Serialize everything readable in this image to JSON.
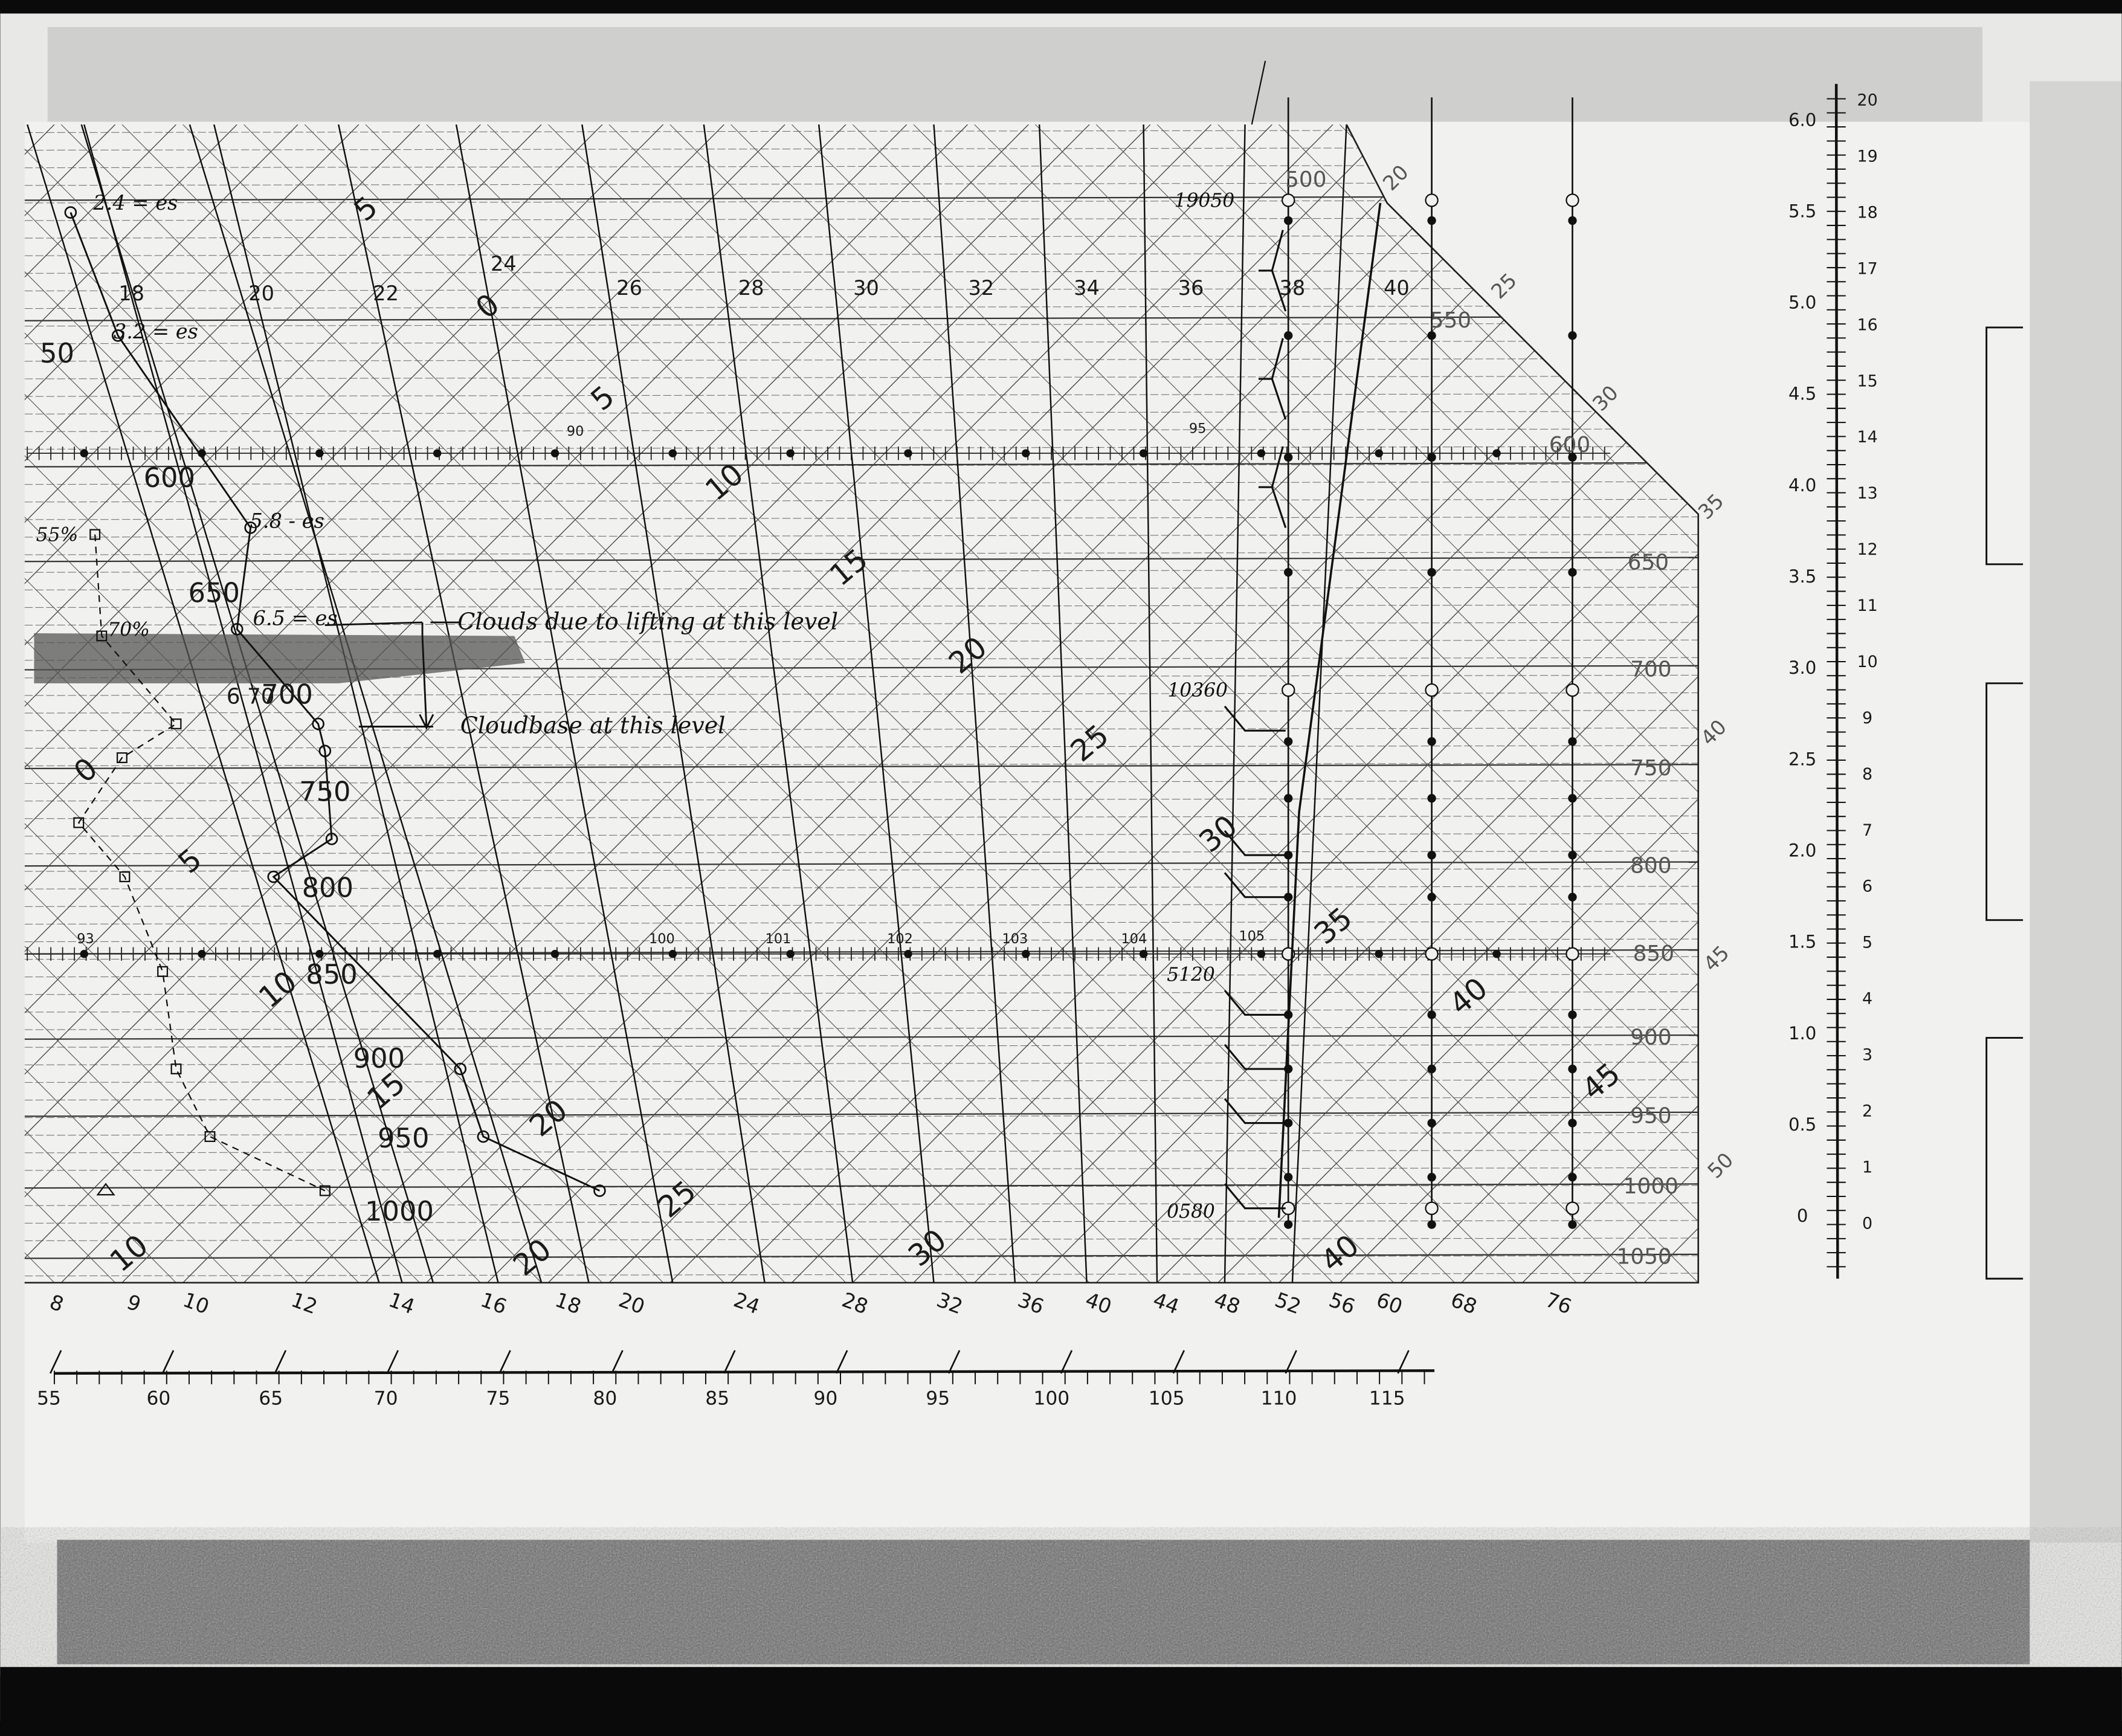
{
  "isobar_labels_right": [
    "500",
    "550",
    "600",
    "650",
    "700",
    "750",
    "800",
    "850",
    "900",
    "950",
    "1000",
    "1050"
  ],
  "isobar_labels_left": [
    "50",
    "600",
    "650",
    "700",
    "750",
    "800",
    "850",
    "900",
    "950",
    "1000"
  ],
  "temperature_top_labels": [
    "18",
    "20",
    "22",
    "24",
    "26",
    "28",
    "30",
    "32",
    "34",
    "36",
    "38",
    "40"
  ],
  "temperature_bottom_labels": [
    "8",
    "9",
    "10",
    "12",
    "14",
    "16",
    "18",
    "20",
    "24",
    "28",
    "32",
    "36",
    "40",
    "44",
    "48",
    "52",
    "56",
    "60",
    "68",
    "76"
  ],
  "bottom_scale_labels": [
    "55",
    "60",
    "65",
    "70",
    "75",
    "80",
    "85",
    "90",
    "95",
    "100",
    "105",
    "110",
    "115"
  ],
  "right_scale_left_labels": [
    "6.0",
    "5.5",
    "5.0",
    "4.5",
    "4.0",
    "3.5",
    "3.0",
    "2.5",
    "2.0",
    "1.5",
    "1.0",
    "0.5",
    "0"
  ],
  "right_scale_right_labels": [
    "20",
    "19",
    "18",
    "17",
    "16",
    "15",
    "14",
    "13",
    "12",
    "11",
    "10",
    "9",
    "8",
    "7",
    "6",
    "5",
    "4",
    "3",
    "2",
    "1",
    "0"
  ],
  "diagonal_labels": [
    "0",
    "5",
    "10",
    "15",
    "20",
    "25",
    "30",
    "35",
    "40",
    "45",
    "0",
    "5",
    "10",
    "15",
    "20",
    "25",
    "30",
    "10",
    "20",
    "40",
    "5"
  ],
  "edge_labels": [
    "20",
    "25",
    "30",
    "35",
    "40",
    "45",
    "50"
  ],
  "marker_labels": [
    "90",
    "95",
    "93",
    "100",
    "101",
    "102",
    "103",
    "104",
    "105"
  ],
  "height_labels": [
    "19050",
    "10360",
    "5120",
    "0580"
  ],
  "vapor_pressure_notes": [
    "2.4 = es",
    "3.2 = es",
    "5.8 - es",
    "6.5 = es"
  ],
  "humidity_notes": [
    "55%",
    "70%"
  ],
  "level_note": "6 70",
  "annotations": {
    "cloud_lifting": "Clouds due to lifting at this level",
    "cloud_base": "Cloudbase at this level"
  },
  "colors": {
    "paper": "#ececea",
    "ink": "#111111",
    "frame": "#0a0a0a"
  }
}
